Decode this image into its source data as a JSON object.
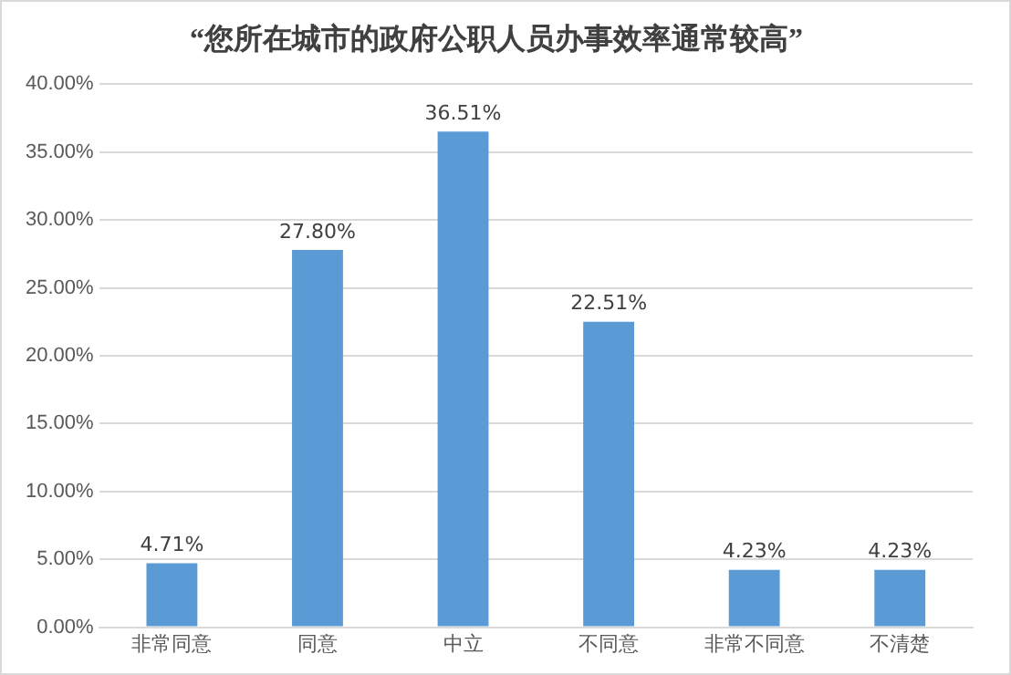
{
  "chart_data": {
    "type": "bar",
    "title": "“您所在城市的政府公职人员办事效率通常较高”",
    "categories": [
      "非常同意",
      "同意",
      "中立",
      "不同意",
      "非常不同意",
      "不清楚"
    ],
    "values": [
      4.71,
      27.8,
      36.51,
      22.51,
      4.23,
      4.23
    ],
    "value_labels": [
      "4.71%",
      "27.80%",
      "36.51%",
      "22.51%",
      "4.23%",
      "4.23%"
    ],
    "color": "#5b9bd5",
    "ylim": [
      0,
      40
    ],
    "yticks": [
      {
        "value": 0,
        "label": "0.00%"
      },
      {
        "value": 5,
        "label": "5.00%"
      },
      {
        "value": 10,
        "label": "10.00%"
      },
      {
        "value": 15,
        "label": "15.00%"
      },
      {
        "value": 20,
        "label": "20.00%"
      },
      {
        "value": 25,
        "label": "25.00%"
      },
      {
        "value": 30,
        "label": "30.00%"
      },
      {
        "value": 35,
        "label": "35.00%"
      },
      {
        "value": 40,
        "label": "40.00%"
      }
    ],
    "grid": "y"
  }
}
